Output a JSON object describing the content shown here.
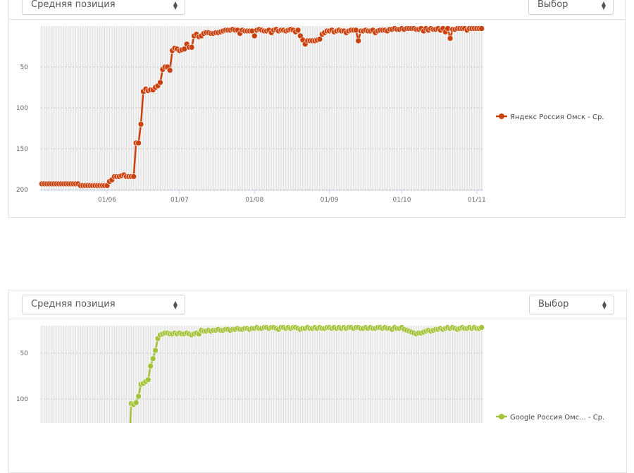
{
  "charts_ui": [
    {
      "metric_select": "Средняя позиция",
      "choice_select": "Выбор"
    },
    {
      "metric_select": "Средняя позиция",
      "choice_select": "Выбор"
    }
  ],
  "chart_data": [
    {
      "type": "line",
      "x_range": [
        "05/05",
        "01/11"
      ],
      "x_step": "1 day",
      "x_ticks": [
        "01/06",
        "01/07",
        "01/08",
        "01/09",
        "01/10",
        "01/11"
      ],
      "y_ticks": [
        50,
        100,
        150,
        200
      ],
      "ylim": [
        0,
        200
      ],
      "y_reversed": true,
      "grid": true,
      "legend_placement": "right",
      "series": [
        {
          "name": "Яндекс Россия Омск - Ср.",
          "color": "#c9410e",
          "values": [
            193,
            193,
            193,
            193,
            193,
            193,
            193,
            193,
            193,
            193,
            193,
            193,
            193,
            193,
            193,
            193,
            195,
            195,
            195,
            195,
            195,
            195,
            195,
            195,
            195,
            195,
            195,
            195,
            190,
            188,
            184,
            184,
            184,
            183,
            182,
            184,
            184,
            184,
            184,
            143,
            143,
            120,
            80,
            77,
            79,
            78,
            78,
            75,
            73,
            69,
            53,
            50,
            50,
            54,
            30,
            27,
            28,
            30,
            29,
            28,
            22,
            26,
            26,
            12,
            10,
            13,
            12,
            9,
            8,
            8,
            9,
            9,
            8,
            8,
            7,
            6,
            5,
            5,
            5,
            4,
            5,
            5,
            9,
            5,
            6,
            6,
            6,
            6,
            12,
            5,
            4,
            5,
            6,
            6,
            5,
            8,
            5,
            4,
            6,
            5,
            5,
            6,
            5,
            4,
            5,
            7,
            5,
            12,
            17,
            22,
            18,
            18,
            18,
            18,
            17,
            16,
            10,
            8,
            6,
            6,
            5,
            7,
            6,
            5,
            6,
            6,
            8,
            6,
            5,
            5,
            5,
            18,
            6,
            6,
            5,
            6,
            6,
            5,
            8,
            6,
            5,
            5,
            5,
            6,
            4,
            4,
            3,
            4,
            4,
            3,
            4,
            3,
            3,
            3,
            3,
            4,
            4,
            3,
            6,
            3,
            5,
            3,
            4,
            4,
            3,
            5,
            3,
            7,
            3,
            15,
            4,
            4,
            3,
            3,
            3,
            3,
            5,
            3,
            3,
            3,
            3,
            3,
            3
          ]
        }
      ]
    },
    {
      "type": "line",
      "x_range": [
        "05/05",
        "01/11"
      ],
      "x_step": "1 day",
      "y_ticks": [
        50,
        100
      ],
      "ylim": [
        20,
        200
      ],
      "y_reversed": true,
      "grid": true,
      "legend_placement": "right",
      "series": [
        {
          "name": "Google Россия Омс... - Ср.",
          "color": "#a4c33b",
          "values": [
            160,
            160,
            160,
            160,
            160,
            160,
            160,
            160,
            160,
            160,
            160,
            160,
            160,
            160,
            160,
            160,
            160,
            160,
            160,
            160,
            160,
            160,
            160,
            160,
            160,
            160,
            160,
            160,
            160,
            160,
            160,
            160,
            160,
            160,
            160,
            160,
            160,
            105,
            106,
            104,
            97,
            84,
            83,
            81,
            79,
            64,
            56,
            47,
            34,
            30,
            29,
            28,
            28,
            29,
            29,
            28,
            29,
            28,
            29,
            29,
            28,
            29,
            30,
            29,
            28,
            29,
            25,
            26,
            26,
            25,
            26,
            25,
            25,
            24,
            25,
            25,
            24,
            24,
            25,
            24,
            24,
            23,
            24,
            24,
            23,
            23,
            24,
            23,
            23,
            22,
            23,
            23,
            22,
            22,
            23,
            22,
            22,
            23,
            24,
            22,
            22,
            23,
            22,
            23,
            22,
            22,
            23,
            24,
            23,
            23,
            22,
            23,
            23,
            22,
            23,
            22,
            23,
            23,
            22,
            22,
            23,
            22,
            23,
            22,
            23,
            22,
            23,
            22,
            22,
            23,
            22,
            22,
            23,
            23,
            22,
            23,
            22,
            23,
            23,
            22,
            22,
            23,
            22,
            23,
            23,
            24,
            22,
            23,
            23,
            22,
            24,
            25,
            26,
            27,
            28,
            29,
            28,
            28,
            27,
            26,
            25,
            26,
            25,
            24,
            24,
            23,
            24,
            23,
            22,
            23,
            22,
            23,
            24,
            23,
            22,
            23,
            23,
            22,
            23,
            22,
            23,
            23,
            22
          ]
        }
      ]
    }
  ]
}
